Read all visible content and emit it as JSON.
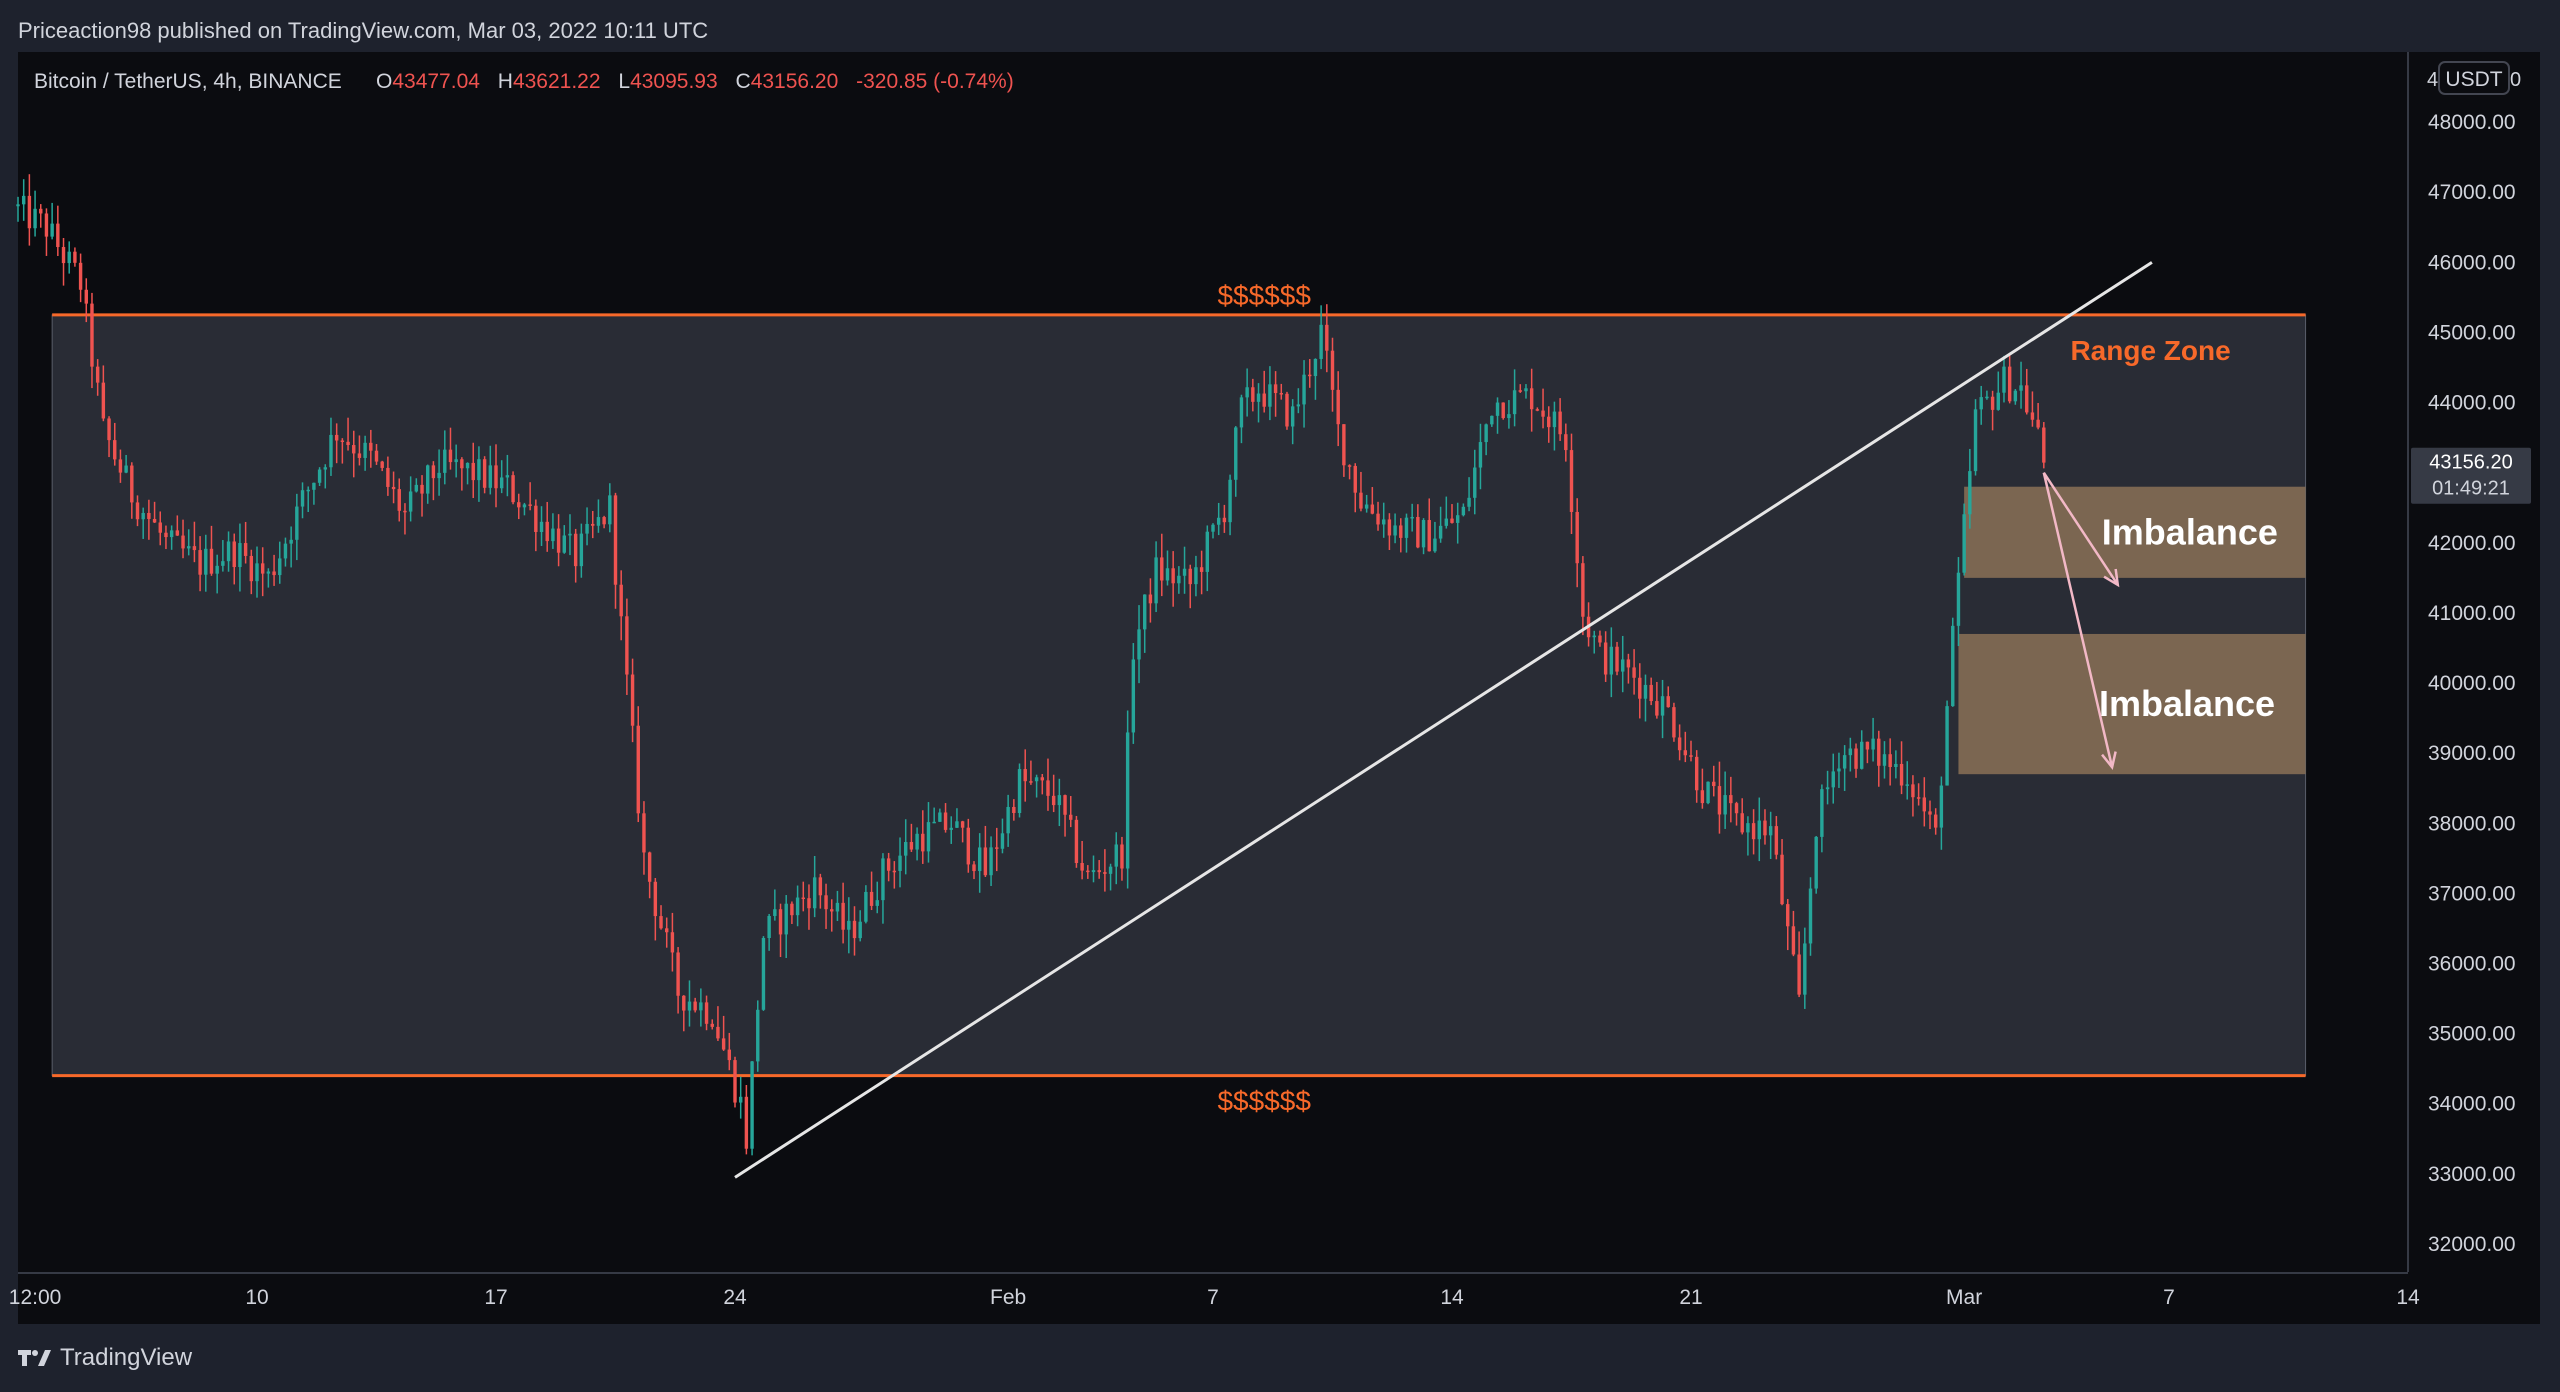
{
  "header": {
    "published": "Priceaction98 published on TradingView.com, Mar 03, 2022 10:11 UTC"
  },
  "legend": {
    "symbol": "Bitcoin / TetherUS, 4h, BINANCE",
    "o_label": "O",
    "o": "43477.04",
    "h_label": "H",
    "h": "43621.22",
    "l_label": "L",
    "l": "43095.93",
    "c_label": "C",
    "c": "43156.20",
    "change": "-320.85 (-0.74%)"
  },
  "price_axis": {
    "currency": "USDT",
    "top_partial": "4",
    "top_partial_right": "0",
    "last_price": "43156.20",
    "countdown": "01:49:21"
  },
  "footer": {
    "brand": "TradingView"
  },
  "colors": {
    "up": "#26a69a",
    "down": "#ef5350",
    "range": "#f7692a",
    "imbalance": "#8a7156",
    "trendline": "#e6e6e6",
    "arrow": "#f2b8c6",
    "background": "#0b0c10"
  },
  "chart_data": {
    "type": "candlestick",
    "timeframe": "4h",
    "ylim": [
      31600,
      49000
    ],
    "y_ticks": [
      48000,
      47000,
      46000,
      45000,
      44000,
      43000,
      42000,
      41000,
      40000,
      39000,
      38000,
      37000,
      36000,
      35000,
      34000,
      33000,
      32000
    ],
    "y_tick_labels": [
      "48000.00",
      "47000.00",
      "46000.00",
      "45000.00",
      "44000.00",
      "43000.00",
      "42000.00",
      "41000.00",
      "40000.00",
      "39000.00",
      "38000.00",
      "37000.00",
      "36000.00",
      "35000.00",
      "34000.00",
      "33000.00",
      "32000.00"
    ],
    "x_ticks": [
      {
        "label": "12:00",
        "date": "2022-01-03 12:00"
      },
      {
        "label": "10",
        "date": "2022-01-10"
      },
      {
        "label": "17",
        "date": "2022-01-17"
      },
      {
        "label": "24",
        "date": "2022-01-24"
      },
      {
        "label": "Feb",
        "date": "2022-02-01"
      },
      {
        "label": "7",
        "date": "2022-02-07"
      },
      {
        "label": "14",
        "date": "2022-02-14"
      },
      {
        "label": "21",
        "date": "2022-02-21"
      },
      {
        "label": "Mar",
        "date": "2022-03-01"
      },
      {
        "label": "7",
        "date": "2022-03-07"
      },
      {
        "label": "14",
        "date": "2022-03-14"
      }
    ],
    "x_range": [
      "2022-01-03 00:00",
      "2022-03-14 00:00"
    ],
    "price_path": [
      [
        "2022-01-03 00:00",
        46800
      ],
      [
        "2022-01-04 00:00",
        46500
      ],
      [
        "2022-01-05 00:00",
        45700
      ],
      [
        "2022-01-05 16:00",
        43600
      ],
      [
        "2022-01-06 12:00",
        42700
      ],
      [
        "2022-01-07 12:00",
        42000
      ],
      [
        "2022-01-08 12:00",
        41700
      ],
      [
        "2022-01-09 12:00",
        41900
      ],
      [
        "2022-01-10 12:00",
        41500
      ],
      [
        "2022-01-11 12:00",
        42600
      ],
      [
        "2022-01-12 12:00",
        43600
      ],
      [
        "2022-01-13 12:00",
        43200
      ],
      [
        "2022-01-14 12:00",
        42400
      ],
      [
        "2022-01-15 12:00",
        43100
      ],
      [
        "2022-01-16 12:00",
        43000
      ],
      [
        "2022-01-17 12:00",
        42800
      ],
      [
        "2022-01-18 12:00",
        42300
      ],
      [
        "2022-01-19 12:00",
        41800
      ],
      [
        "2022-01-20 12:00",
        42500
      ],
      [
        "2022-01-20 20:00",
        40800
      ],
      [
        "2022-01-21 12:00",
        37500
      ],
      [
        "2022-01-22 12:00",
        35600
      ],
      [
        "2022-01-23 12:00",
        35300
      ],
      [
        "2022-01-24 08:00",
        34000
      ],
      [
        "2022-01-24 12:00",
        33500
      ],
      [
        "2022-01-25 00:00",
        36400
      ],
      [
        "2022-01-26 12:00",
        37100
      ],
      [
        "2022-01-27 12:00",
        36400
      ],
      [
        "2022-01-28 12:00",
        37300
      ],
      [
        "2022-01-29 12:00",
        37800
      ],
      [
        "2022-01-30 12:00",
        38000
      ],
      [
        "2022-01-31 12:00",
        37300
      ],
      [
        "2022-02-01 12:00",
        38600
      ],
      [
        "2022-02-02 12:00",
        38400
      ],
      [
        "2022-02-03 12:00",
        37200
      ],
      [
        "2022-02-04 12:00",
        37600
      ],
      [
        "2022-02-04 20:00",
        40500
      ],
      [
        "2022-02-05 12:00",
        41600
      ],
      [
        "2022-02-06 12:00",
        41400
      ],
      [
        "2022-02-07 12:00",
        42500
      ],
      [
        "2022-02-08 00:00",
        43900
      ],
      [
        "2022-02-08 12:00",
        44200
      ],
      [
        "2022-02-09 12:00",
        43800
      ],
      [
        "2022-02-10 08:00",
        45000
      ],
      [
        "2022-02-10 20:00",
        43600
      ],
      [
        "2022-02-11 12:00",
        42600
      ],
      [
        "2022-02-12 12:00",
        42200
      ],
      [
        "2022-02-13 12:00",
        42100
      ],
      [
        "2022-02-14 12:00",
        42400
      ],
      [
        "2022-02-15 08:00",
        44000
      ],
      [
        "2022-02-16 12:00",
        44100
      ],
      [
        "2022-02-17 12:00",
        43500
      ],
      [
        "2022-02-18 00:00",
        41000
      ],
      [
        "2022-02-18 12:00",
        40400
      ],
      [
        "2022-02-19 12:00",
        40100
      ],
      [
        "2022-02-20 12:00",
        39600
      ],
      [
        "2022-02-21 12:00",
        38500
      ],
      [
        "2022-02-22 12:00",
        38000
      ],
      [
        "2022-02-23 12:00",
        37900
      ],
      [
        "2022-02-24 08:00",
        35400
      ],
      [
        "2022-02-24 20:00",
        38000
      ],
      [
        "2022-02-25 12:00",
        39000
      ],
      [
        "2022-02-26 12:00",
        39000
      ],
      [
        "2022-02-27 12:00",
        38700
      ],
      [
        "2022-02-28 08:00",
        37800
      ],
      [
        "2022-02-28 20:00",
        40600
      ],
      [
        "2022-03-01 12:00",
        43800
      ],
      [
        "2022-03-02 08:00",
        44300
      ],
      [
        "2022-03-02 20:00",
        44200
      ],
      [
        "2022-03-03 08:00",
        43500
      ],
      [
        "2022-03-03 10:00",
        43156
      ]
    ],
    "range_zone": {
      "label": "Range Zone",
      "top": 45250,
      "bottom": 34400,
      "start": "2022-01-04 00:00",
      "end": "2022-03-11 00:00"
    },
    "liquidity_labels": [
      {
        "text": "$$$$$$",
        "price": 45250,
        "date": "2022-02-08 12:00"
      },
      {
        "text": "$$$$$$",
        "price": 34400,
        "date": "2022-02-08 12:00"
      }
    ],
    "imbalance_zones": [
      {
        "label": "Imbalance",
        "top": 42800,
        "bottom": 41500,
        "start": "2022-03-01 00:00",
        "end": "2022-03-11 00:00"
      },
      {
        "label": "Imbalance",
        "top": 40700,
        "bottom": 38700,
        "start": "2022-02-28 20:00",
        "end": "2022-03-11 00:00"
      }
    ],
    "trendline": {
      "from": [
        "2022-01-24 00:00",
        32950
      ],
      "to": [
        "2022-03-06 12:00",
        46000
      ]
    },
    "arrows": [
      {
        "from": [
          "2022-03-03 08:00",
          43000
        ],
        "to": [
          "2022-03-05 12:00",
          41400
        ]
      },
      {
        "from": [
          "2022-03-03 08:00",
          43000
        ],
        "to": [
          "2022-03-05 08:00",
          38800
        ]
      }
    ]
  }
}
